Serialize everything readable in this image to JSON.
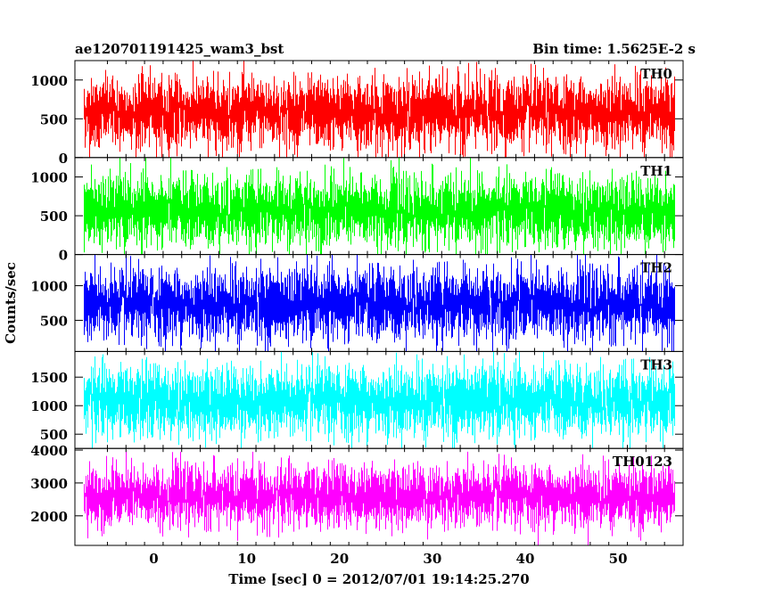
{
  "chart_data": {
    "type": "line",
    "title": "ae120701191425_wam3_bst",
    "subtitle": "Bin time: 1.5625E-2 s",
    "xlabel": "Time [sec] 0 = 2012/07/01 19:14:25.270",
    "ylabel": "Counts/sec",
    "xlim": [
      -8.5,
      57
    ],
    "x_ticks": [
      0,
      10,
      20,
      30,
      40,
      50
    ],
    "bin_time_s": 0.015625,
    "data_x_range": [
      -7.5,
      56
    ],
    "grid": false,
    "panels": [
      {
        "name": "TH0",
        "color": "#ff0000",
        "ylim": [
          0,
          1250
        ],
        "y_ticks": [
          0,
          500,
          1000
        ],
        "series_stats": {
          "mean": 580,
          "sigma": 220,
          "min": 0,
          "max": 1250
        }
      },
      {
        "name": "TH1",
        "color": "#00ff00",
        "ylim": [
          0,
          1250
        ],
        "y_ticks": [
          0,
          500,
          1000
        ],
        "series_stats": {
          "mean": 560,
          "sigma": 220,
          "min": 0,
          "max": 1250
        }
      },
      {
        "name": "TH2",
        "color": "#0000ff",
        "ylim": [
          50,
          1450
        ],
        "y_ticks": [
          500,
          1000
        ],
        "series_stats": {
          "mean": 730,
          "sigma": 250,
          "min": 50,
          "max": 1450
        }
      },
      {
        "name": "TH3",
        "color": "#00ffff",
        "ylim": [
          250,
          1950
        ],
        "y_ticks": [
          500,
          1000,
          1500
        ],
        "series_stats": {
          "mean": 1080,
          "sigma": 300,
          "min": 250,
          "max": 1950
        }
      },
      {
        "name": "TH0123",
        "color": "#ff00ff",
        "ylim": [
          1100,
          4050
        ],
        "y_ticks": [
          2000,
          3000,
          4000
        ],
        "series_stats": {
          "mean": 2600,
          "sigma": 450,
          "min": 1100,
          "max": 3950
        }
      }
    ]
  }
}
